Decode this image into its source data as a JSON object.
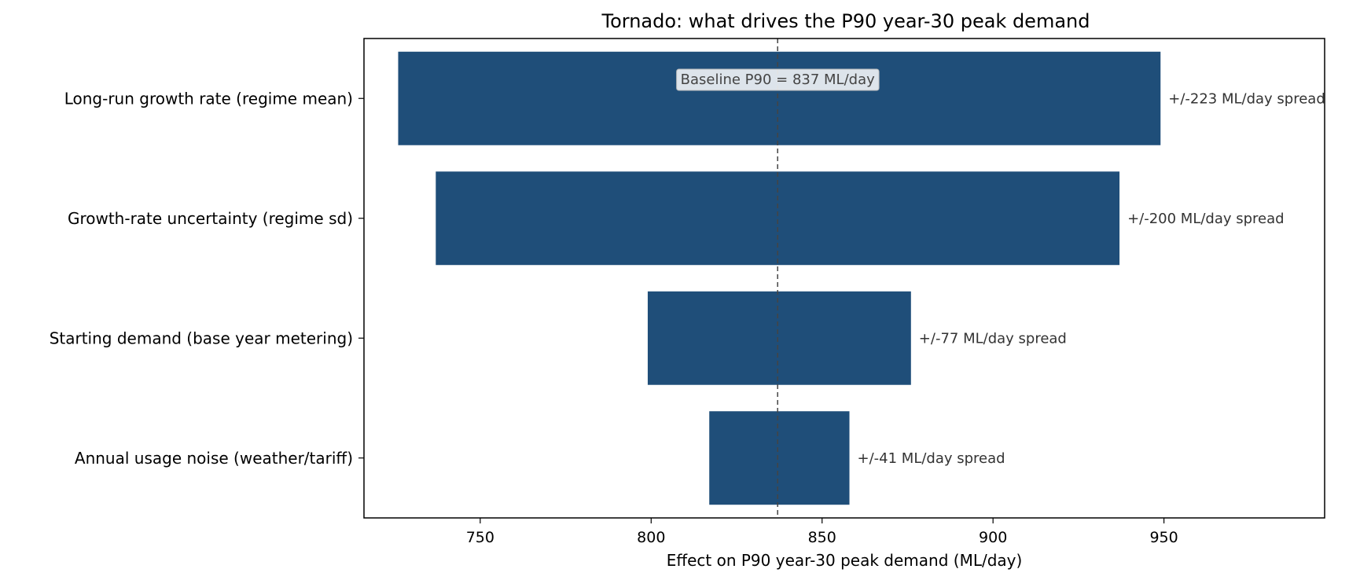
{
  "chart_data": {
    "type": "bar",
    "orientation": "horizontal",
    "subtype": "tornado",
    "title": "Tornado: what drives the P90 year-30 peak demand",
    "xlabel": "Effect on P90 year-30 peak demand  (ML/day)",
    "ylabel": "",
    "xlim": [
      716,
      997
    ],
    "xticks": [
      750,
      800,
      850,
      900,
      950
    ],
    "xtick_labels": [
      "750",
      "800",
      "850",
      "900",
      "950"
    ],
    "grid": false,
    "baseline": {
      "value": 837,
      "label": "Baseline P90 = 837 ML/day"
    },
    "bar_color": "#1f4e79",
    "bars": [
      {
        "label": "Long-run growth rate (regime mean)",
        "low": 726,
        "high": 949,
        "annotation": "+/-223 ML/day spread"
      },
      {
        "label": "Growth-rate uncertainty (regime sd)",
        "low": 737,
        "high": 937,
        "annotation": "+/-200 ML/day spread"
      },
      {
        "label": "Starting demand (base year metering)",
        "low": 799,
        "high": 876,
        "annotation": "+/-77 ML/day spread"
      },
      {
        "label": "Annual usage noise (weather/tariff)",
        "low": 817,
        "high": 858,
        "annotation": "+/-41 ML/day spread"
      }
    ]
  }
}
